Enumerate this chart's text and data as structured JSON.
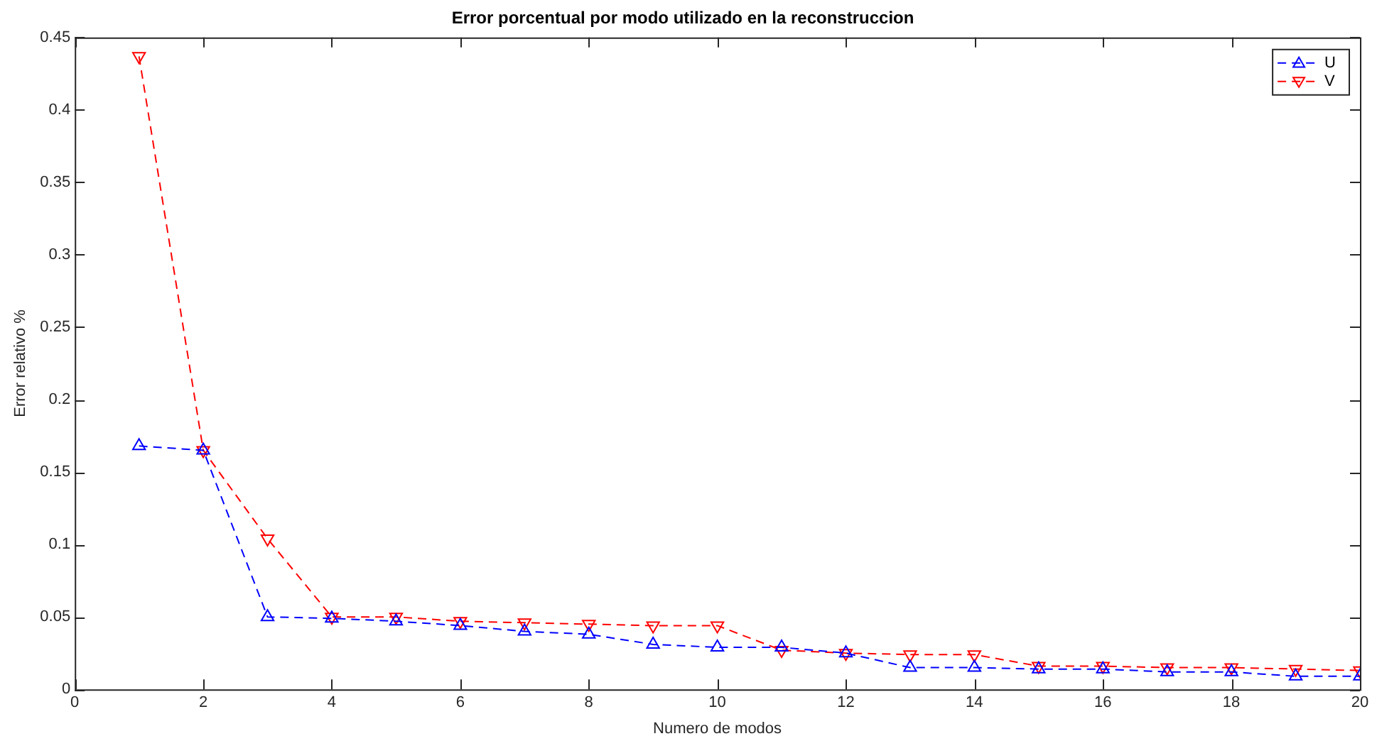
{
  "chart_data": {
    "type": "line",
    "title": "Error porcentual por modo utilizado en la reconstruccion",
    "xlabel": "Numero de modos",
    "ylabel": "Error relativo %",
    "x": [
      1,
      2,
      3,
      4,
      5,
      6,
      7,
      8,
      9,
      10,
      11,
      12,
      13,
      14,
      15,
      16,
      17,
      18,
      19,
      20
    ],
    "series": [
      {
        "name": "U",
        "color": "#0000ff",
        "values": [
          0.168,
          0.165,
          0.05,
          0.049,
          0.047,
          0.044,
          0.04,
          0.038,
          0.031,
          0.029,
          0.029,
          0.025,
          0.015,
          0.015,
          0.014,
          0.014,
          0.012,
          0.012,
          0.009,
          0.009
        ]
      },
      {
        "name": "V",
        "color": "#ff0000",
        "values": [
          0.437,
          0.165,
          0.104,
          0.05,
          0.05,
          0.047,
          0.046,
          0.045,
          0.044,
          0.044,
          0.027,
          0.025,
          0.024,
          0.024,
          0.016,
          0.016,
          0.015,
          0.015,
          0.014,
          0.013
        ]
      }
    ],
    "xlim": [
      0,
      20
    ],
    "xticks": [
      0,
      2,
      4,
      6,
      8,
      10,
      12,
      14,
      16,
      18,
      20
    ],
    "ylim": [
      0,
      0.45
    ],
    "yticks": [
      0,
      0.05,
      0.1,
      0.15,
      0.2,
      0.25,
      0.3,
      0.35,
      0.4,
      0.45
    ],
    "grid": false,
    "legend": "top right",
    "marker": "triangle",
    "line_style": "dashed"
  }
}
